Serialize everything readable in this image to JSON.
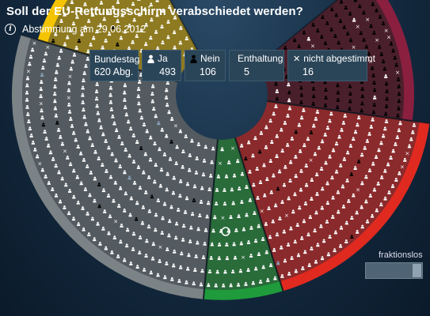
{
  "title": "Soll der EU-Rettungsschirm  verabschiedet werden?",
  "info_icon": "info-icon",
  "date_text": "Abstimmung am 29.06.2012",
  "stats": {
    "body_label": "Bundestag",
    "total_label": "620 Abg.",
    "yes_label": "Ja",
    "yes_value": "493",
    "no_label": "Nein",
    "no_value": "106",
    "abstain_label": "Enthaltung",
    "abstain_value": "5",
    "absent_label": "nicht abgestimmt",
    "absent_value": "16"
  },
  "toggle_label": "fraktionslos",
  "colors": {
    "gold": "#f5c400",
    "gold_dim": "#8e7a20",
    "gray": "#7c8386",
    "gray_dim": "#535b60",
    "green": "#1f9b3c",
    "green_dim": "#2a6b3a",
    "red": "#e02a20",
    "red_dim": "#8a2a2c",
    "maroon": "#8a1f40",
    "maroon_dim": "#4a1f2c"
  },
  "chart_data": {
    "type": "parliament-seat-chart",
    "total": 620,
    "yes": 493,
    "no": 106,
    "abstain": 5,
    "absent": 16,
    "groups": [
      {
        "color": "gold"
      },
      {
        "color": "gray"
      },
      {
        "color": "green"
      },
      {
        "color": "red"
      },
      {
        "color": "maroon"
      }
    ]
  }
}
